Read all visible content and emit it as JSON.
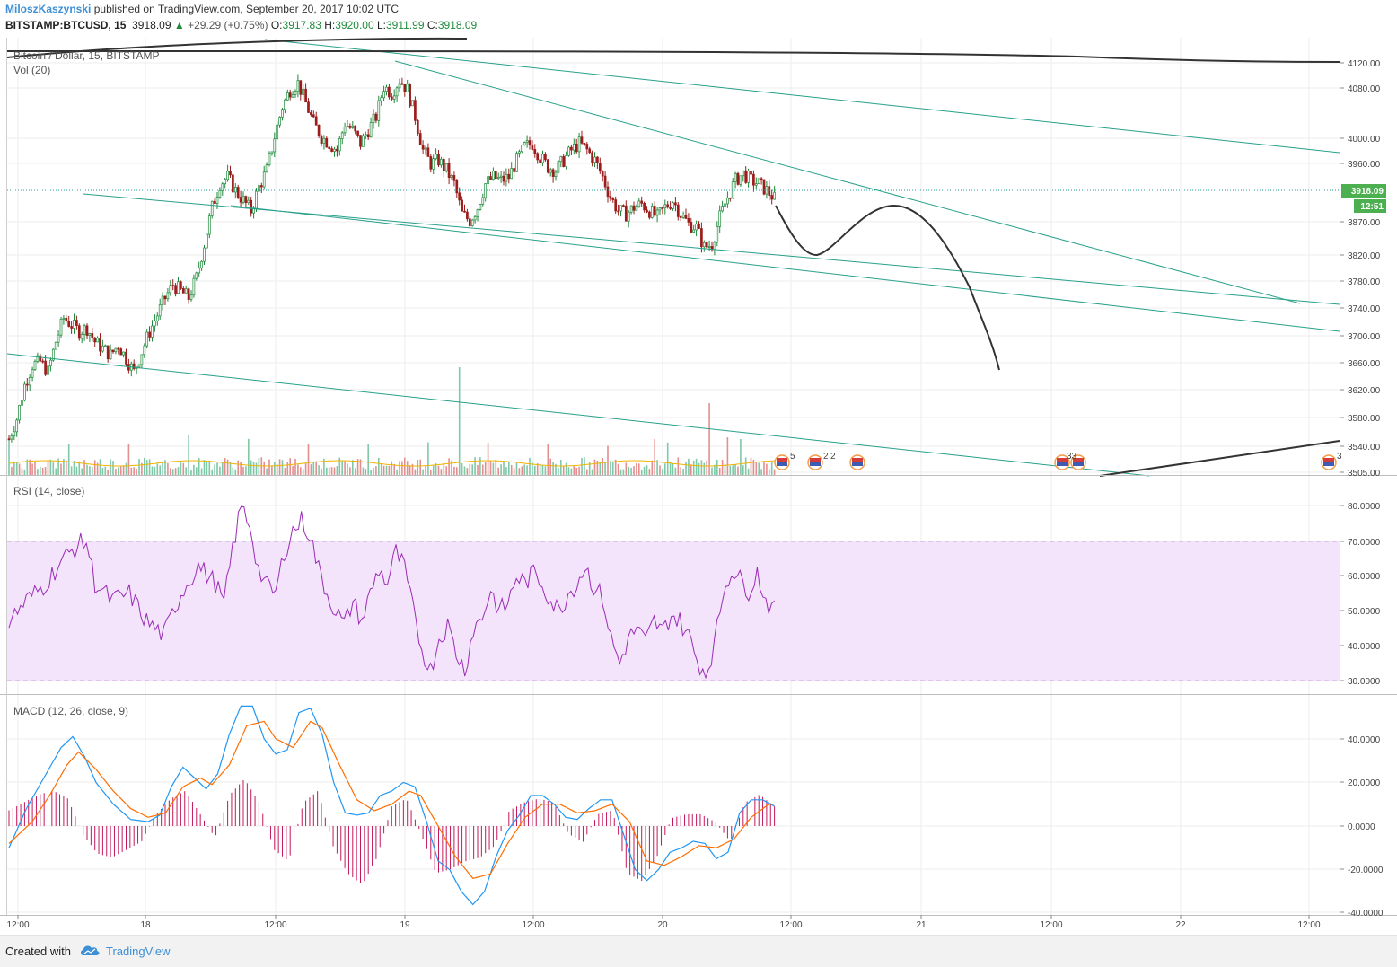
{
  "header": {
    "author": "MiloszKaszynski",
    "published_text": "published on TradingView.com, September 20, 2017 10:02 UTC",
    "symbol": "BITSTAMP:BTCUSD, 15",
    "last": "3918.09",
    "change": "+29.29 (+0.75%)",
    "open_label": "O:",
    "open": "3917.83",
    "high_label": "H:",
    "high": "3920.00",
    "low_label": "L:",
    "low": "3911.99",
    "close_label": "C:",
    "close": "3918.09",
    "up_arrow": "▲"
  },
  "main_pane": {
    "title": "Bitcoin / Dollar, 15, BITSTAMP",
    "vol_label": "Vol (20)",
    "price_badge": "3918.09",
    "time_badge": "12:51",
    "y_ticks": [
      "4120.00",
      "4080.00",
      "4000.00",
      "3960.00",
      "3870.00",
      "3820.00",
      "3780.00",
      "3740.00",
      "3700.00",
      "3660.00",
      "3620.00",
      "3580.00",
      "3540.00",
      "3505.00"
    ],
    "event_badges": [
      "5",
      "2",
      "2",
      "33",
      "3"
    ]
  },
  "rsi_pane": {
    "title": "RSI (14, close)",
    "y_ticks": [
      "80.0000",
      "70.0000",
      "60.0000",
      "50.0000",
      "40.0000",
      "30.0000"
    ]
  },
  "macd_pane": {
    "title": "MACD (12, 26, close, 9)",
    "y_ticks": [
      "40.0000",
      "20.0000",
      "0.0000",
      "-20.0000",
      "-40.0000"
    ]
  },
  "x_axis": {
    "ticks": [
      "12:00",
      "18",
      "12:00",
      "19",
      "12:00",
      "20",
      "12:00",
      "21",
      "12:00",
      "22",
      "12:00"
    ]
  },
  "footer": {
    "created_with": "Created with",
    "brand": "TradingView"
  },
  "colors": {
    "up": "#26a69a",
    "down": "#ef5350",
    "candle_up": "#1e8a3a",
    "candle_down": "#9c1d1d",
    "trendline": "#27a08a",
    "drawing": "#333333",
    "rsi": "#9a2cb5",
    "rsi_band": "#f3e3fb",
    "macd": "#2196f3",
    "signal": "#ff6d00",
    "hist_pos": "#c2185b",
    "hist_neg": "#c2185b",
    "volume_ma": "#f0b400",
    "badge_bg": "#4caf50"
  },
  "chart_data": {
    "type": "candlestick",
    "title": "Bitcoin / Dollar, 15, BITSTAMP",
    "y_range": [
      3505,
      4150
    ],
    "x_labels": [
      "12:00",
      "18",
      "12:00",
      "19",
      "12:00",
      "20",
      "12:00",
      "21",
      "12:00",
      "22",
      "12:00"
    ],
    "price_path": [
      [
        0,
        3560
      ],
      [
        3,
        3590
      ],
      [
        6,
        3640
      ],
      [
        9,
        3670
      ],
      [
        12,
        3675
      ],
      [
        15,
        3660
      ],
      [
        18,
        3705
      ],
      [
        21,
        3740
      ],
      [
        24,
        3730
      ],
      [
        27,
        3720
      ],
      [
        30,
        3725
      ],
      [
        33,
        3705
      ],
      [
        36,
        3695
      ],
      [
        39,
        3685
      ],
      [
        42,
        3700
      ],
      [
        45,
        3680
      ],
      [
        48,
        3660
      ],
      [
        51,
        3690
      ],
      [
        54,
        3720
      ],
      [
        57,
        3745
      ],
      [
        60,
        3770
      ],
      [
        63,
        3790
      ],
      [
        66,
        3780
      ],
      [
        69,
        3770
      ],
      [
        72,
        3800
      ],
      [
        75,
        3850
      ],
      [
        78,
        3905
      ],
      [
        81,
        3940
      ],
      [
        84,
        3950
      ],
      [
        87,
        3930
      ],
      [
        90,
        3915
      ],
      [
        93,
        3900
      ],
      [
        96,
        3935
      ],
      [
        99,
        3960
      ],
      [
        102,
        4010
      ],
      [
        105,
        4055
      ],
      [
        108,
        4080
      ],
      [
        111,
        4090
      ],
      [
        114,
        4060
      ],
      [
        117,
        4030
      ],
      [
        120,
        4010
      ],
      [
        123,
        4000
      ],
      [
        126,
        3990
      ],
      [
        129,
        4030
      ],
      [
        132,
        4020
      ],
      [
        135,
        4000
      ],
      [
        138,
        4020
      ],
      [
        141,
        4040
      ],
      [
        144,
        4085
      ],
      [
        147,
        4075
      ],
      [
        150,
        4095
      ],
      [
        153,
        4080
      ],
      [
        156,
        4040
      ],
      [
        159,
        3990
      ],
      [
        162,
        3970
      ],
      [
        165,
        3975
      ],
      [
        168,
        3960
      ],
      [
        171,
        3940
      ],
      [
        174,
        3895
      ],
      [
        177,
        3885
      ],
      [
        180,
        3905
      ],
      [
        183,
        3940
      ],
      [
        186,
        3950
      ],
      [
        189,
        3945
      ],
      [
        192,
        3950
      ],
      [
        195,
        3975
      ],
      [
        198,
        3995
      ],
      [
        201,
        4000
      ],
      [
        204,
        3980
      ],
      [
        207,
        3965
      ],
      [
        210,
        3960
      ],
      [
        213,
        3975
      ],
      [
        216,
        3990
      ],
      [
        219,
        4000
      ],
      [
        222,
        3990
      ],
      [
        225,
        3975
      ],
      [
        228,
        3950
      ],
      [
        231,
        3920
      ],
      [
        234,
        3900
      ],
      [
        237,
        3895
      ],
      [
        240,
        3905
      ],
      [
        243,
        3910
      ],
      [
        246,
        3900
      ],
      [
        249,
        3890
      ],
      [
        252,
        3905
      ],
      [
        255,
        3915
      ],
      [
        258,
        3895
      ],
      [
        261,
        3880
      ],
      [
        264,
        3875
      ],
      [
        267,
        3845
      ],
      [
        270,
        3850
      ],
      [
        273,
        3890
      ],
      [
        276,
        3920
      ],
      [
        279,
        3945
      ],
      [
        282,
        3955
      ],
      [
        285,
        3945
      ],
      [
        288,
        3940
      ],
      [
        291,
        3930
      ],
      [
        294,
        3918
      ]
    ],
    "rsi_series": [
      [
        0,
        47
      ],
      [
        6,
        53
      ],
      [
        12,
        57
      ],
      [
        18,
        64
      ],
      [
        24,
        69
      ],
      [
        27,
        70
      ],
      [
        30,
        58
      ],
      [
        36,
        53
      ],
      [
        42,
        55
      ],
      [
        48,
        47
      ],
      [
        54,
        43
      ],
      [
        60,
        55
      ],
      [
        66,
        63
      ],
      [
        72,
        58
      ],
      [
        75,
        52
      ],
      [
        78,
        68
      ],
      [
        81,
        80
      ],
      [
        84,
        75
      ],
      [
        87,
        62
      ],
      [
        90,
        57
      ],
      [
        93,
        55
      ],
      [
        96,
        67
      ],
      [
        99,
        73
      ],
      [
        102,
        76
      ],
      [
        105,
        72
      ],
      [
        108,
        62
      ],
      [
        111,
        55
      ],
      [
        114,
        50
      ],
      [
        117,
        46
      ],
      [
        120,
        53
      ],
      [
        123,
        47
      ],
      [
        126,
        55
      ],
      [
        129,
        62
      ],
      [
        132,
        58
      ],
      [
        135,
        67
      ],
      [
        138,
        62
      ],
      [
        141,
        50
      ],
      [
        144,
        39
      ],
      [
        147,
        33
      ],
      [
        150,
        42
      ],
      [
        153,
        46
      ],
      [
        156,
        38
      ],
      [
        159,
        33
      ],
      [
        162,
        45
      ],
      [
        165,
        48
      ],
      [
        168,
        56
      ],
      [
        171,
        50
      ],
      [
        174,
        52
      ],
      [
        177,
        60
      ],
      [
        180,
        58
      ],
      [
        183,
        61
      ],
      [
        186,
        58
      ],
      [
        189,
        53
      ],
      [
        192,
        50
      ],
      [
        195,
        55
      ],
      [
        198,
        58
      ],
      [
        201,
        63
      ],
      [
        204,
        57
      ],
      [
        207,
        54
      ],
      [
        210,
        42
      ],
      [
        213,
        35
      ],
      [
        216,
        42
      ],
      [
        219,
        45
      ],
      [
        222,
        41
      ],
      [
        225,
        47
      ],
      [
        228,
        44
      ],
      [
        231,
        49
      ],
      [
        234,
        47
      ],
      [
        237,
        43
      ],
      [
        240,
        36
      ],
      [
        243,
        32
      ],
      [
        246,
        40
      ],
      [
        249,
        55
      ],
      [
        252,
        62
      ],
      [
        255,
        59
      ],
      [
        258,
        56
      ],
      [
        261,
        61
      ],
      [
        264,
        53
      ],
      [
        267,
        50
      ]
    ],
    "macd_series": [
      [
        0,
        -10
      ],
      [
        6,
        8
      ],
      [
        12,
        22
      ],
      [
        18,
        36
      ],
      [
        22,
        41
      ],
      [
        26,
        32
      ],
      [
        30,
        20
      ],
      [
        36,
        10
      ],
      [
        42,
        3
      ],
      [
        48,
        2
      ],
      [
        52,
        5
      ],
      [
        56,
        18
      ],
      [
        60,
        27
      ],
      [
        64,
        22
      ],
      [
        68,
        17
      ],
      [
        72,
        24
      ],
      [
        76,
        42
      ],
      [
        80,
        55
      ],
      [
        84,
        55
      ],
      [
        88,
        40
      ],
      [
        92,
        33
      ],
      [
        96,
        35
      ],
      [
        100,
        52
      ],
      [
        104,
        54
      ],
      [
        108,
        42
      ],
      [
        112,
        20
      ],
      [
        116,
        6
      ],
      [
        120,
        5
      ],
      [
        124,
        6
      ],
      [
        128,
        14
      ],
      [
        132,
        16
      ],
      [
        136,
        20
      ],
      [
        140,
        18
      ],
      [
        144,
        2
      ],
      [
        148,
        -16
      ],
      [
        152,
        -20
      ],
      [
        156,
        -30
      ],
      [
        160,
        -36
      ],
      [
        164,
        -30
      ],
      [
        168,
        -14
      ],
      [
        172,
        -2
      ],
      [
        176,
        5
      ],
      [
        180,
        14
      ],
      [
        184,
        14
      ],
      [
        188,
        10
      ],
      [
        192,
        4
      ],
      [
        196,
        3
      ],
      [
        200,
        8
      ],
      [
        204,
        12
      ],
      [
        208,
        12
      ],
      [
        212,
        -4
      ],
      [
        216,
        -20
      ],
      [
        220,
        -25
      ],
      [
        224,
        -20
      ],
      [
        228,
        -12
      ],
      [
        232,
        -10
      ],
      [
        236,
        -7
      ],
      [
        240,
        -8
      ],
      [
        244,
        -15
      ],
      [
        248,
        -12
      ],
      [
        252,
        6
      ],
      [
        256,
        12
      ],
      [
        260,
        12
      ],
      [
        264,
        9
      ]
    ],
    "signal_series": [
      [
        0,
        -8
      ],
      [
        8,
        2
      ],
      [
        14,
        14
      ],
      [
        20,
        28
      ],
      [
        24,
        34
      ],
      [
        30,
        26
      ],
      [
        36,
        16
      ],
      [
        42,
        8
      ],
      [
        48,
        4
      ],
      [
        54,
        6
      ],
      [
        60,
        18
      ],
      [
        66,
        22
      ],
      [
        70,
        19
      ],
      [
        76,
        28
      ],
      [
        82,
        46
      ],
      [
        88,
        48
      ],
      [
        92,
        40
      ],
      [
        98,
        36
      ],
      [
        104,
        48
      ],
      [
        108,
        45
      ],
      [
        114,
        28
      ],
      [
        120,
        12
      ],
      [
        126,
        7
      ],
      [
        132,
        10
      ],
      [
        138,
        16
      ],
      [
        142,
        14
      ],
      [
        148,
        0
      ],
      [
        154,
        -14
      ],
      [
        160,
        -24
      ],
      [
        166,
        -22
      ],
      [
        172,
        -8
      ],
      [
        178,
        4
      ],
      [
        184,
        10
      ],
      [
        190,
        10
      ],
      [
        196,
        6
      ],
      [
        202,
        7
      ],
      [
        208,
        10
      ],
      [
        214,
        2
      ],
      [
        220,
        -16
      ],
      [
        226,
        -18
      ],
      [
        232,
        -14
      ],
      [
        238,
        -9
      ],
      [
        244,
        -10
      ],
      [
        250,
        -6
      ],
      [
        256,
        4
      ],
      [
        262,
        10
      ]
    ],
    "histogram": [
      [
        0,
        4
      ],
      [
        5,
        6
      ],
      [
        10,
        8
      ],
      [
        15,
        9
      ],
      [
        20,
        7
      ],
      [
        25,
        -2
      ],
      [
        30,
        -7
      ],
      [
        35,
        -8
      ],
      [
        40,
        -6
      ],
      [
        45,
        -4
      ],
      [
        50,
        3
      ],
      [
        55,
        7
      ],
      [
        60,
        9
      ],
      [
        65,
        3
      ],
      [
        70,
        -3
      ],
      [
        75,
        8
      ],
      [
        80,
        12
      ],
      [
        85,
        6
      ],
      [
        90,
        -6
      ],
      [
        95,
        -9
      ],
      [
        100,
        6
      ],
      [
        105,
        9
      ],
      [
        110,
        -5
      ],
      [
        115,
        -12
      ],
      [
        120,
        -15
      ],
      [
        125,
        -8
      ],
      [
        130,
        5
      ],
      [
        135,
        7
      ],
      [
        140,
        -2
      ],
      [
        145,
        -12
      ],
      [
        150,
        -11
      ],
      [
        155,
        -9
      ],
      [
        160,
        -8
      ],
      [
        165,
        -5
      ],
      [
        170,
        4
      ],
      [
        175,
        6
      ],
      [
        180,
        7
      ],
      [
        185,
        6
      ],
      [
        190,
        -2
      ],
      [
        195,
        -4
      ],
      [
        200,
        3
      ],
      [
        205,
        4
      ],
      [
        210,
        -12
      ],
      [
        215,
        -14
      ],
      [
        220,
        -8
      ],
      [
        225,
        2
      ],
      [
        230,
        3
      ],
      [
        235,
        3
      ],
      [
        240,
        1
      ],
      [
        245,
        -4
      ],
      [
        250,
        6
      ],
      [
        255,
        8
      ],
      [
        260,
        5
      ]
    ],
    "y_axis_label": "",
    "x_axis_label": ""
  }
}
